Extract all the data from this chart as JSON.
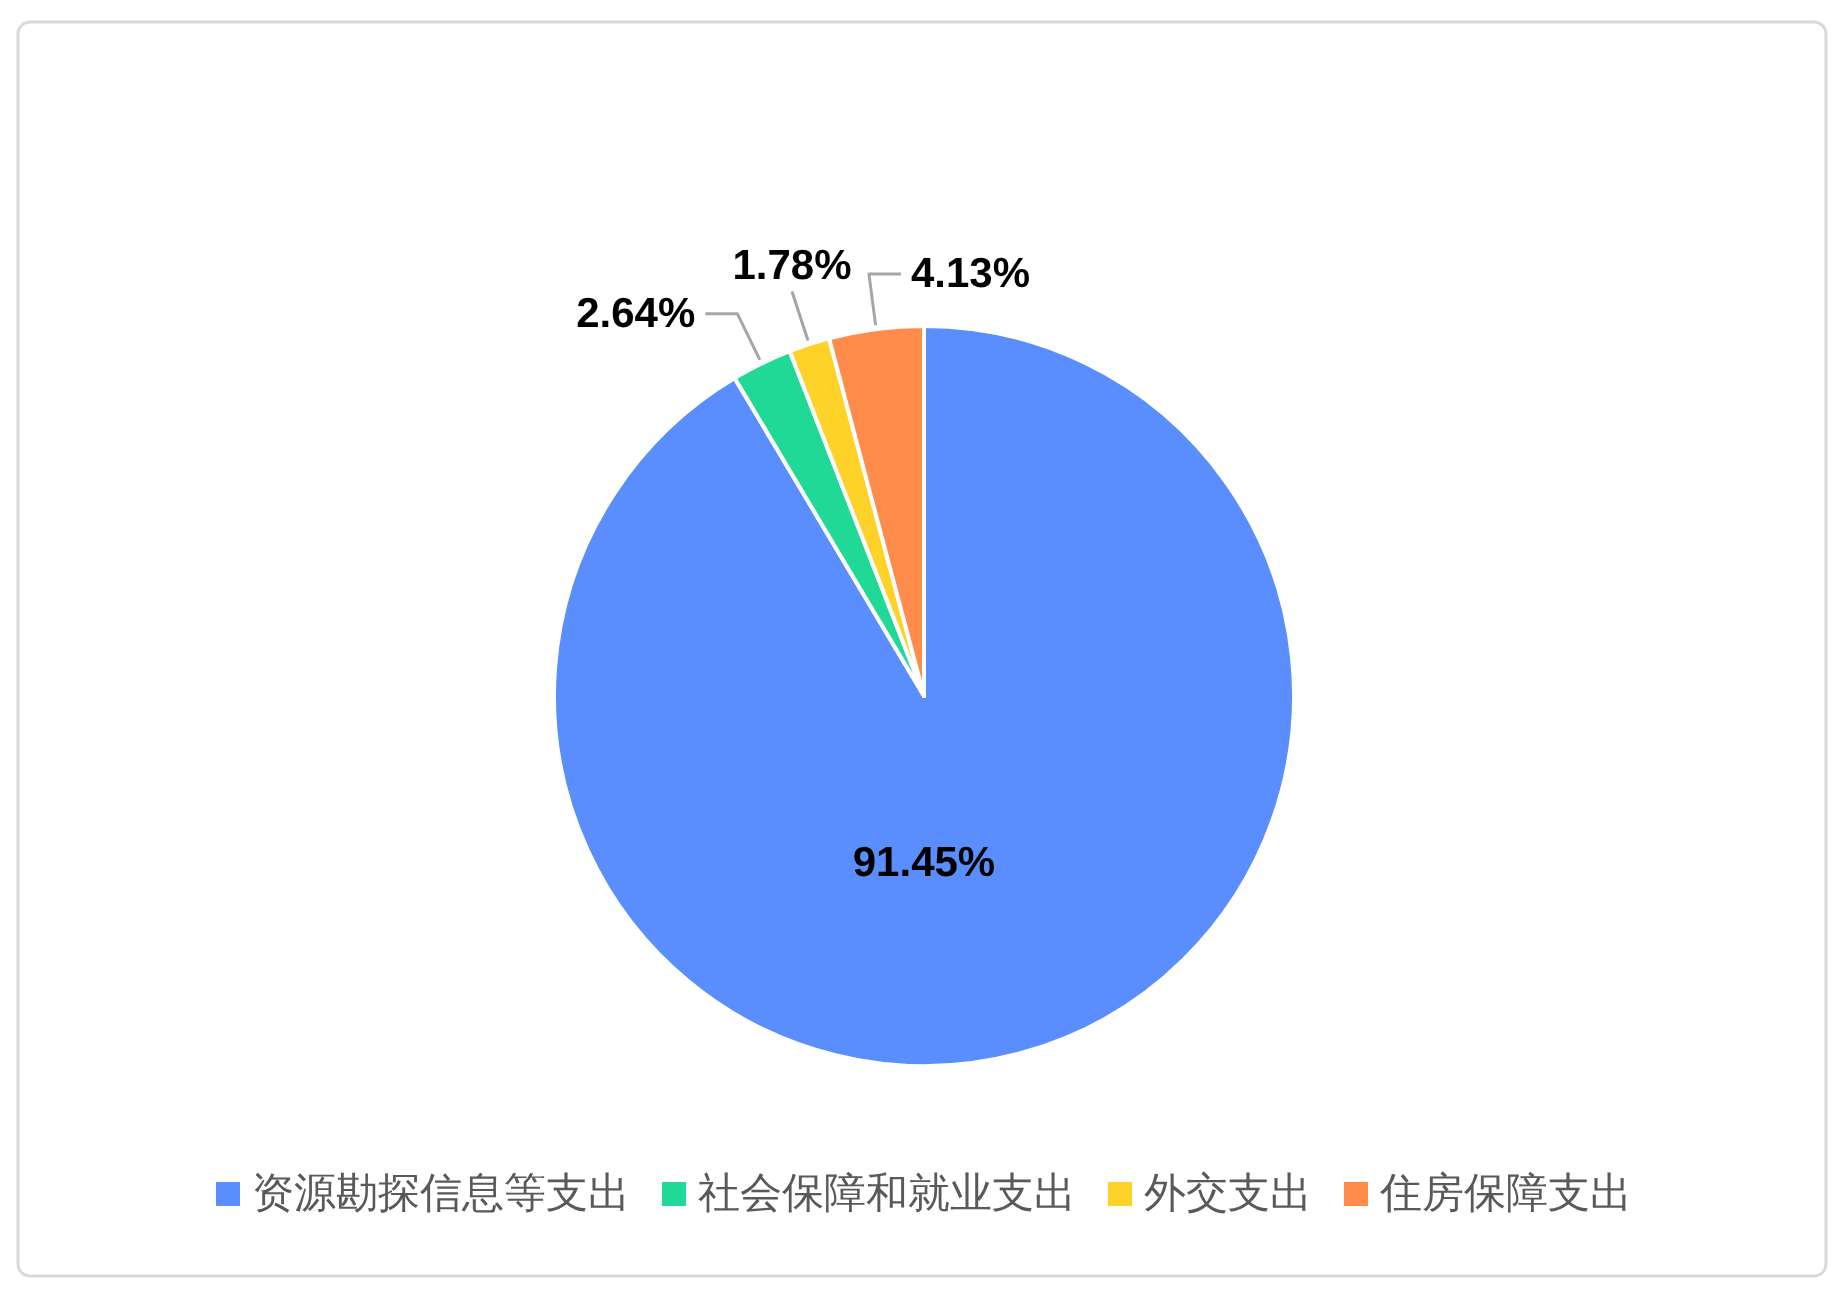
{
  "chart_data": {
    "type": "pie",
    "categories": [
      "资源勘探信息等支出",
      "社会保障和就业支出",
      "外交支出",
      "住房保障支出"
    ],
    "values": [
      91.45,
      2.64,
      1.78,
      4.13
    ],
    "colors": [
      "#5a8dfe",
      "#21d996",
      "#ffd22a",
      "#ff8c4b"
    ],
    "value_labels": [
      "91.45%",
      "2.64%",
      "1.78%",
      "4.13%"
    ],
    "legend": "bottom"
  }
}
